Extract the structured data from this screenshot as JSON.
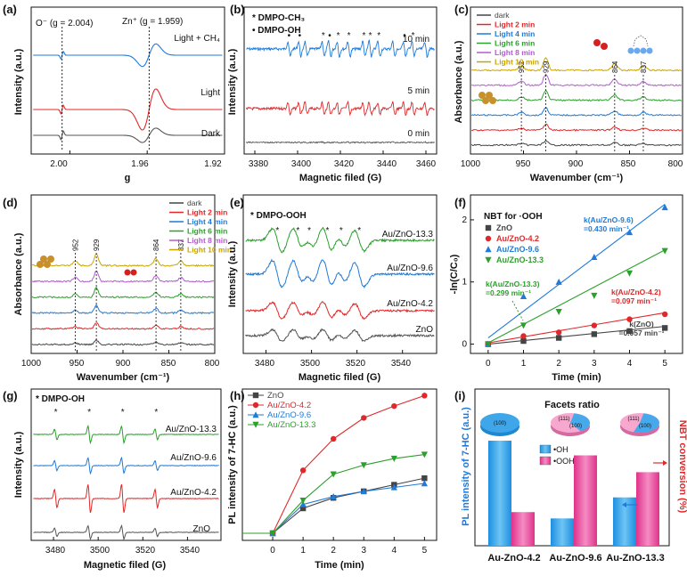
{
  "chart_data": [
    {
      "panel": "(a)",
      "type": "line",
      "xlabel": "g",
      "ylabel": "Intensity (a.u.)",
      "xticks": [
        "2.00",
        "1.96",
        "1.92"
      ],
      "xlim": [
        2.02,
        1.92
      ],
      "dash_lines": [
        2.004,
        1.959
      ],
      "annotations": [
        "O⁻ (g = 2.004)",
        "Zn⁺ (g = 1.959)"
      ],
      "series": [
        {
          "name": "Light + CH₄",
          "color": "#1f7ad8"
        },
        {
          "name": "Light",
          "color": "#e0282a"
        },
        {
          "name": "Dark",
          "color": "#555555"
        }
      ]
    },
    {
      "panel": "(b)",
      "type": "line",
      "xlabel": "Magnetic filed (G)",
      "ylabel": "Intensity (a.u.)",
      "xticks": [
        "3380",
        "3400",
        "3420",
        "3440",
        "3460"
      ],
      "xlim": [
        3375,
        3465
      ],
      "legend": [
        "* DMPO-CH₃",
        "• DMPO-OH"
      ],
      "series": [
        {
          "name": "10 min",
          "color": "#1f7ad8"
        },
        {
          "name": "5 min",
          "color": "#e0282a"
        },
        {
          "name": "0 min",
          "color": "#555555"
        }
      ]
    },
    {
      "panel": "(c)",
      "type": "line",
      "xlabel": "Wavenumber (cm⁻¹)",
      "ylabel": "Absorbance (a.u.)",
      "xticks": [
        "1000",
        "950",
        "900",
        "850",
        "800"
      ],
      "xlim": [
        1000,
        800
      ],
      "peaks": [
        "952",
        "929",
        "864",
        "837"
      ],
      "series": [
        {
          "name": "dark",
          "color": "#444444"
        },
        {
          "name": "Light 2 min",
          "color": "#e0282a"
        },
        {
          "name": "Light 4 min",
          "color": "#1f7ad8"
        },
        {
          "name": "Light 6 min",
          "color": "#2ca02c"
        },
        {
          "name": "Light 8 min",
          "color": "#b25ad0"
        },
        {
          "name": "Light 10 min",
          "color": "#c9a400"
        }
      ]
    },
    {
      "panel": "(d)",
      "type": "line",
      "xlabel": "Wavenumber (cm⁻¹)",
      "ylabel": "Absorbance (a.u.)",
      "xticks": [
        "1000",
        "950",
        "900",
        "850",
        "800"
      ],
      "xlim": [
        1000,
        800
      ],
      "peaks": [
        "952",
        "929",
        "864",
        "837"
      ],
      "series": [
        {
          "name": "dark",
          "color": "#444444"
        },
        {
          "name": "Light 2 min",
          "color": "#e0282a"
        },
        {
          "name": "Light 4 min",
          "color": "#1f7ad8"
        },
        {
          "name": "Light 6 min",
          "color": "#2ca02c"
        },
        {
          "name": "Light 8 min",
          "color": "#b25ad0"
        },
        {
          "name": "Light 10 min",
          "color": "#c9a400"
        }
      ]
    },
    {
      "panel": "(e)",
      "type": "line",
      "xlabel": "Magnetic filed (G)",
      "ylabel": "Intensity (a.u.)",
      "xticks": [
        "3480",
        "3500",
        "3520",
        "3540"
      ],
      "xlim": [
        3470,
        3555
      ],
      "legend": [
        "* DMPO-OOH"
      ],
      "series": [
        {
          "name": "Au/ZnO-13.3",
          "color": "#2ca02c"
        },
        {
          "name": "Au/ZnO-9.6",
          "color": "#1f7ad8"
        },
        {
          "name": "Au/ZnO-4.2",
          "color": "#e0282a"
        },
        {
          "name": "ZnO",
          "color": "#555555"
        }
      ]
    },
    {
      "panel": "(f)",
      "type": "scatter",
      "title": "NBT for ·OOH",
      "xlabel": "Time (min)",
      "ylabel": "-ln(C/C₀)",
      "x": [
        0,
        1,
        2,
        3,
        4,
        5
      ],
      "xlim": [
        -0.5,
        5.5
      ],
      "ylim": [
        -0.15,
        2.4
      ],
      "yticks": [
        0,
        1,
        2
      ],
      "series": [
        {
          "name": "ZnO",
          "color": "#444444",
          "marker": "square",
          "values": [
            0.0,
            0.05,
            0.1,
            0.16,
            0.21,
            0.26
          ],
          "fit": [
            0.0,
            0.057
          ],
          "rate": "k(ZnO)\n=0.057 min⁻¹"
        },
        {
          "name": "Au/ZnO-4.2",
          "color": "#e0282a",
          "marker": "circle",
          "values": [
            0.0,
            0.13,
            0.19,
            0.3,
            0.4,
            0.48
          ],
          "fit": [
            0.02,
            0.097
          ],
          "rate": "k(Au/ZnO-4.2)\n=0.097 min⁻¹"
        },
        {
          "name": "Au/ZnO-9.6",
          "color": "#1f7ad8",
          "marker": "triangle-up",
          "values": [
            0.0,
            0.77,
            1.0,
            1.4,
            1.8,
            2.2
          ],
          "fit": [
            0.1,
            0.43
          ],
          "rate": "k(Au/ZnO-9.6)\n=0.430 min⁻¹"
        },
        {
          "name": "Au/ZnO-13.3",
          "color": "#2ca02c",
          "marker": "triangle-down",
          "values": [
            0.0,
            0.3,
            0.52,
            0.78,
            1.14,
            1.5
          ],
          "fit": [
            0.02,
            0.299
          ],
          "rate": "k(Au/ZnO-13.3)\n=0.299 min⁻¹"
        }
      ]
    },
    {
      "panel": "(g)",
      "type": "line",
      "xlabel": "Magnetic filed (G)",
      "ylabel": "Intensity (a.u.)",
      "xticks": [
        "3480",
        "3500",
        "3520",
        "3540"
      ],
      "xlim": [
        3470,
        3555
      ],
      "legend": [
        "* DMPO-OH"
      ],
      "series": [
        {
          "name": "Au/ZnO-13.3",
          "color": "#2ca02c"
        },
        {
          "name": "Au/ZnO-9.6",
          "color": "#1f7ad8"
        },
        {
          "name": "Au/ZnO-4.2",
          "color": "#e0282a"
        },
        {
          "name": "ZnO",
          "color": "#555555"
        }
      ]
    },
    {
      "panel": "(h)",
      "type": "line",
      "xlabel": "Time (min)",
      "ylabel": "PL intensity of 7-HC (a.u.)",
      "x": [
        -1,
        0,
        1,
        2,
        3,
        4,
        5
      ],
      "xticks": [
        0,
        1,
        2,
        3,
        4,
        5
      ],
      "xlim": [
        -1,
        5.4
      ],
      "ylim": [
        0,
        1.1
      ],
      "series": [
        {
          "name": "ZnO",
          "color": "#444444",
          "marker": "square",
          "values": [
            0.0,
            0.0,
            0.19,
            0.27,
            0.32,
            0.37,
            0.42
          ]
        },
        {
          "name": "Au/ZnO-4.2",
          "color": "#e0282a",
          "marker": "circle",
          "values": [
            0.0,
            0.0,
            0.48,
            0.72,
            0.88,
            0.97,
            1.05
          ]
        },
        {
          "name": "Au/ZnO-9.6",
          "color": "#1f7ad8",
          "marker": "triangle-up",
          "values": [
            0.0,
            0.0,
            0.22,
            0.28,
            0.32,
            0.35,
            0.38
          ]
        },
        {
          "name": "Au/ZnO-13.3",
          "color": "#2ca02c",
          "marker": "triangle-down",
          "values": [
            0.0,
            0.0,
            0.25,
            0.45,
            0.52,
            0.57,
            0.6
          ]
        }
      ]
    },
    {
      "panel": "(i)",
      "type": "bar",
      "title": "Facets ratio",
      "categories": [
        "Au-ZnO-4.2",
        "Au-ZnO-9.6",
        "Au-ZnO-13.3"
      ],
      "ylabel_left": "PL intensity of 7-HC (a.u.)",
      "ylabel_right": "NBT conversion (%)",
      "series": [
        {
          "name": "•OH",
          "color": "#3aa0e0",
          "values": [
            1.0,
            0.26,
            0.46
          ]
        },
        {
          "name": "•OOH",
          "color": "#e8469a",
          "values": [
            0.32,
            0.86,
            0.7
          ]
        }
      ],
      "pies": [
        {
          "labels": [
            "(100)"
          ],
          "values": [
            100
          ]
        },
        {
          "labels": [
            "(111)",
            "(100)"
          ],
          "values": [
            62,
            38
          ]
        },
        {
          "labels": [
            "(111)",
            "(100)"
          ],
          "values": [
            48,
            52
          ]
        }
      ]
    }
  ]
}
